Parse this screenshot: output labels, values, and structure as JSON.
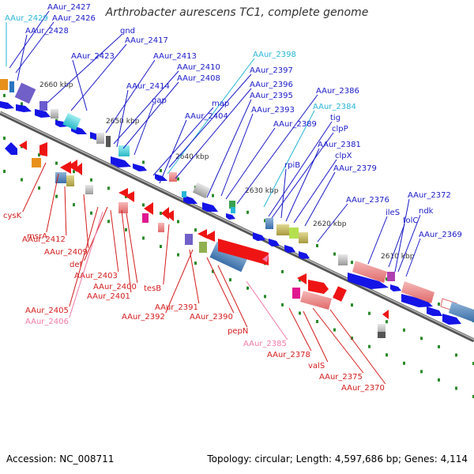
{
  "title": "Arthrobacter aurescens TC1, complete genome",
  "accession": "Accession: NC_008711",
  "topology": "Topology: circular; Length: 4,597,686 bp; Genes: 4,114",
  "colors": {
    "forward_label": "#1a1ac8",
    "reverse_label": "#d41c1c",
    "forward_arrow": "#1414e6",
    "reverse_arrow": "#ee1414",
    "rna_forward": "#29b6d6",
    "rna_reverse": "#f07aa6",
    "backbone": "#888888",
    "tick": "#2a8a2a"
  },
  "scale_labels": [
    "2660 kbp",
    "2650 kbp",
    "2640 kbp",
    "2630 kbp",
    "2620 kbp",
    "2610 kbp"
  ],
  "top_genes": [
    {
      "label": "AAur_2427",
      "color": "#1a1ac8"
    },
    {
      "label": "AAur_2429",
      "color": "#29b6d6"
    },
    {
      "label": "AAur_2426",
      "color": "#1a1ac8"
    },
    {
      "label": "AAur_2428",
      "color": "#1a1ac8"
    },
    {
      "label": "gnd",
      "color": "#1a1ac8"
    },
    {
      "label": "AAur_2417",
      "color": "#1a1ac8"
    },
    {
      "label": "AAur_2423",
      "color": "#1a1ac8"
    },
    {
      "label": "AAur_2413",
      "color": "#1a1ac8"
    },
    {
      "label": "AAur_2398",
      "color": "#29b6d6"
    },
    {
      "label": "AAur_2410",
      "color": "#1a1ac8"
    },
    {
      "label": "AAur_2397",
      "color": "#1a1ac8"
    },
    {
      "label": "AAur_2408",
      "color": "#1a1ac8"
    },
    {
      "label": "AAur_2414",
      "color": "#1a1ac8"
    },
    {
      "label": "AAur_2396",
      "color": "#1a1ac8"
    },
    {
      "label": "gap",
      "color": "#1a1ac8"
    },
    {
      "label": "AAur_2395",
      "color": "#1a1ac8"
    },
    {
      "label": "AAur_2386",
      "color": "#1a1ac8"
    },
    {
      "label": "map",
      "color": "#1a1ac8"
    },
    {
      "label": "AAur_2384",
      "color": "#29b6d6"
    },
    {
      "label": "AAur_2393",
      "color": "#1a1ac8"
    },
    {
      "label": "tig",
      "color": "#1a1ac8"
    },
    {
      "label": "AAur_2404",
      "color": "#1a1ac8"
    },
    {
      "label": "AAur_2389",
      "color": "#1a1ac8"
    },
    {
      "label": "clpP",
      "color": "#1a1ac8"
    },
    {
      "label": "AAur_2381",
      "color": "#1a1ac8"
    },
    {
      "label": "clpX",
      "color": "#1a1ac8"
    },
    {
      "label": "rpiB",
      "color": "#1a1ac8"
    },
    {
      "label": "AAur_2379",
      "color": "#1a1ac8"
    },
    {
      "label": "AAur_2372",
      "color": "#1a1ac8"
    },
    {
      "label": "AAur_2376",
      "color": "#1a1ac8"
    },
    {
      "label": "ileS",
      "color": "#1a1ac8"
    },
    {
      "label": "ndk",
      "color": "#1a1ac8"
    },
    {
      "label": "folC",
      "color": "#1a1ac8"
    },
    {
      "label": "AAur_2369",
      "color": "#1a1ac8"
    }
  ],
  "bottom_genes": [
    {
      "label": "cysK",
      "color": "#d41c1c"
    },
    {
      "label": "msrA",
      "color": "#d41c1c"
    },
    {
      "label": "AAur_2412",
      "color": "#d41c1c"
    },
    {
      "label": "AAur_2409",
      "color": "#d41c1c"
    },
    {
      "label": "def",
      "color": "#d41c1c"
    },
    {
      "label": "AAur_2403",
      "color": "#d41c1c"
    },
    {
      "label": "AAur_2400",
      "color": "#d41c1c"
    },
    {
      "label": "AAur_2401",
      "color": "#d41c1c"
    },
    {
      "label": "tesB",
      "color": "#d41c1c"
    },
    {
      "label": "AAur_2405",
      "color": "#d41c1c"
    },
    {
      "label": "AAur_2406",
      "color": "#f07aa6"
    },
    {
      "label": "AAur_2391",
      "color": "#d41c1c"
    },
    {
      "label": "AAur_2392",
      "color": "#d41c1c"
    },
    {
      "label": "AAur_2390",
      "color": "#d41c1c"
    },
    {
      "label": "pepN",
      "color": "#d41c1c"
    },
    {
      "label": "AAur_2385",
      "color": "#f07aa6"
    },
    {
      "label": "AAur_2378",
      "color": "#d41c1c"
    },
    {
      "label": "valS",
      "color": "#d41c1c"
    },
    {
      "label": "AAur_2375",
      "color": "#d41c1c"
    },
    {
      "label": "AAur_2370",
      "color": "#d41c1c"
    }
  ]
}
